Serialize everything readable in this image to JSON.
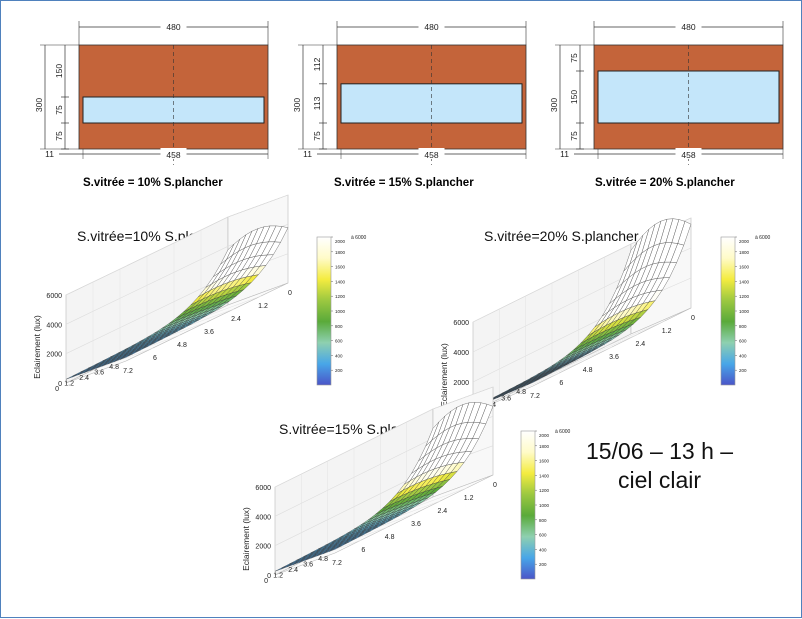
{
  "facades": [
    {
      "caption": "S.vitrée = 10% S.plancher",
      "width_label": "480",
      "height_label": "300",
      "vertical_labels": [
        "150",
        "75",
        "75"
      ],
      "window_height": 75,
      "sill_height": 75,
      "margin_label": "11",
      "window_width_label": "458"
    },
    {
      "caption": "S.vitrée = 15% S.plancher",
      "width_label": "480",
      "height_label": "300",
      "vertical_labels": [
        "112",
        "113",
        "75"
      ],
      "window_height": 113,
      "sill_height": 75,
      "margin_label": "11",
      "window_width_label": "458"
    },
    {
      "caption": "S.vitrée = 20% S.plancher",
      "width_label": "480",
      "height_label": "300",
      "vertical_labels": [
        "75",
        "150",
        "75"
      ],
      "window_height": 150,
      "sill_height": 75,
      "margin_label": "11",
      "window_width_label": "458"
    }
  ],
  "plots": [
    {
      "title": "S.vitrée=10% S.plancher",
      "zlabel": "Eclairement (lux)",
      "z_ticks": [
        "0",
        "2000",
        "4000",
        "6000"
      ],
      "depth_ticks": [
        "0",
        "1.2",
        "2.4",
        "3.6",
        "4.8",
        "6",
        "7.2"
      ],
      "width_ticks": [
        "0",
        "1.2",
        "2.4",
        "3.6",
        "4.8"
      ],
      "peak_lux": 4000
    },
    {
      "title": "S.vitrée=20% S.plancher",
      "zlabel": "Eclairement (lux)",
      "z_ticks": [
        "0",
        "2000",
        "4000",
        "6000"
      ],
      "depth_ticks": [
        "0",
        "1.2",
        "2.4",
        "3.6",
        "4.8",
        "6",
        "7.2"
      ],
      "width_ticks": [
        "0",
        "1.2",
        "2.4",
        "3.6",
        "4.8"
      ],
      "peak_lux": 6000
    },
    {
      "title": "S.vitrée=15% S.plancher",
      "zlabel": "Eclairement (lux)",
      "z_ticks": [
        "0",
        "2000",
        "4000",
        "6000"
      ],
      "depth_ticks": [
        "0",
        "1.2",
        "2.4",
        "3.6",
        "4.8",
        "6",
        "7.2"
      ],
      "width_ticks": [
        "0",
        "1.2",
        "2.4",
        "3.6",
        "4.8"
      ],
      "peak_lux": 5000
    }
  ],
  "colorbar": {
    "ticks": [
      "200",
      "400",
      "600",
      "800",
      "1000",
      "1200",
      "1400",
      "1600",
      "1800",
      "2000"
    ],
    "top_label": "à 6000",
    "stops": [
      "#4a55c8",
      "#48a6e8",
      "#8ed0b0",
      "#5aaa3a",
      "#9cc840",
      "#f4ec40",
      "#fffbc8",
      "#ffffff"
    ]
  },
  "note": {
    "line1": "15/06 – 13 h –",
    "line2": "ciel clair"
  },
  "colors": {
    "wall": "#c4643a",
    "glass": "#c4e6fa",
    "frame": "#4f81bd"
  }
}
